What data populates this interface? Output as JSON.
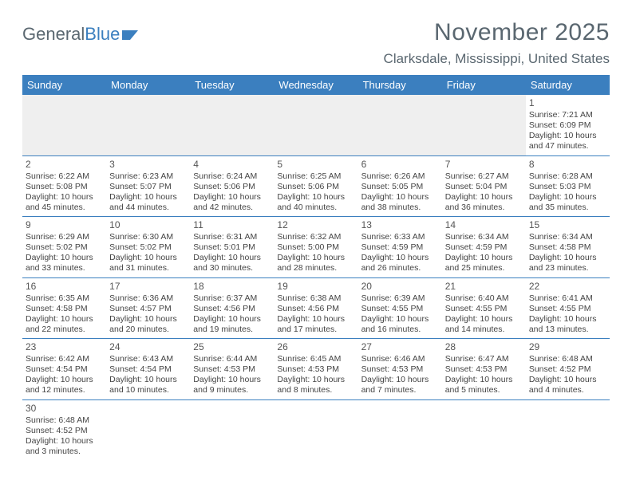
{
  "logo": {
    "text1": "General",
    "text2": "Blue"
  },
  "title": "November 2025",
  "location": "Clarksdale, Mississippi, United States",
  "colors": {
    "header_bg": "#3b7fbf",
    "header_text": "#ffffff",
    "text": "#5a6770",
    "rule": "#3b7fbf",
    "empty_bg": "#efefef"
  },
  "weekdays": [
    "Sunday",
    "Monday",
    "Tuesday",
    "Wednesday",
    "Thursday",
    "Friday",
    "Saturday"
  ],
  "weeks": [
    [
      {
        "empty": true
      },
      {
        "empty": true
      },
      {
        "empty": true
      },
      {
        "empty": true
      },
      {
        "empty": true
      },
      {
        "empty": true
      },
      {
        "day": "1",
        "sunrise": "Sunrise: 7:21 AM",
        "sunset": "Sunset: 6:09 PM",
        "day1": "Daylight: 10 hours",
        "day2": "and 47 minutes."
      }
    ],
    [
      {
        "day": "2",
        "sunrise": "Sunrise: 6:22 AM",
        "sunset": "Sunset: 5:08 PM",
        "day1": "Daylight: 10 hours",
        "day2": "and 45 minutes."
      },
      {
        "day": "3",
        "sunrise": "Sunrise: 6:23 AM",
        "sunset": "Sunset: 5:07 PM",
        "day1": "Daylight: 10 hours",
        "day2": "and 44 minutes."
      },
      {
        "day": "4",
        "sunrise": "Sunrise: 6:24 AM",
        "sunset": "Sunset: 5:06 PM",
        "day1": "Daylight: 10 hours",
        "day2": "and 42 minutes."
      },
      {
        "day": "5",
        "sunrise": "Sunrise: 6:25 AM",
        "sunset": "Sunset: 5:06 PM",
        "day1": "Daylight: 10 hours",
        "day2": "and 40 minutes."
      },
      {
        "day": "6",
        "sunrise": "Sunrise: 6:26 AM",
        "sunset": "Sunset: 5:05 PM",
        "day1": "Daylight: 10 hours",
        "day2": "and 38 minutes."
      },
      {
        "day": "7",
        "sunrise": "Sunrise: 6:27 AM",
        "sunset": "Sunset: 5:04 PM",
        "day1": "Daylight: 10 hours",
        "day2": "and 36 minutes."
      },
      {
        "day": "8",
        "sunrise": "Sunrise: 6:28 AM",
        "sunset": "Sunset: 5:03 PM",
        "day1": "Daylight: 10 hours",
        "day2": "and 35 minutes."
      }
    ],
    [
      {
        "day": "9",
        "sunrise": "Sunrise: 6:29 AM",
        "sunset": "Sunset: 5:02 PM",
        "day1": "Daylight: 10 hours",
        "day2": "and 33 minutes."
      },
      {
        "day": "10",
        "sunrise": "Sunrise: 6:30 AM",
        "sunset": "Sunset: 5:02 PM",
        "day1": "Daylight: 10 hours",
        "day2": "and 31 minutes."
      },
      {
        "day": "11",
        "sunrise": "Sunrise: 6:31 AM",
        "sunset": "Sunset: 5:01 PM",
        "day1": "Daylight: 10 hours",
        "day2": "and 30 minutes."
      },
      {
        "day": "12",
        "sunrise": "Sunrise: 6:32 AM",
        "sunset": "Sunset: 5:00 PM",
        "day1": "Daylight: 10 hours",
        "day2": "and 28 minutes."
      },
      {
        "day": "13",
        "sunrise": "Sunrise: 6:33 AM",
        "sunset": "Sunset: 4:59 PM",
        "day1": "Daylight: 10 hours",
        "day2": "and 26 minutes."
      },
      {
        "day": "14",
        "sunrise": "Sunrise: 6:34 AM",
        "sunset": "Sunset: 4:59 PM",
        "day1": "Daylight: 10 hours",
        "day2": "and 25 minutes."
      },
      {
        "day": "15",
        "sunrise": "Sunrise: 6:34 AM",
        "sunset": "Sunset: 4:58 PM",
        "day1": "Daylight: 10 hours",
        "day2": "and 23 minutes."
      }
    ],
    [
      {
        "day": "16",
        "sunrise": "Sunrise: 6:35 AM",
        "sunset": "Sunset: 4:58 PM",
        "day1": "Daylight: 10 hours",
        "day2": "and 22 minutes."
      },
      {
        "day": "17",
        "sunrise": "Sunrise: 6:36 AM",
        "sunset": "Sunset: 4:57 PM",
        "day1": "Daylight: 10 hours",
        "day2": "and 20 minutes."
      },
      {
        "day": "18",
        "sunrise": "Sunrise: 6:37 AM",
        "sunset": "Sunset: 4:56 PM",
        "day1": "Daylight: 10 hours",
        "day2": "and 19 minutes."
      },
      {
        "day": "19",
        "sunrise": "Sunrise: 6:38 AM",
        "sunset": "Sunset: 4:56 PM",
        "day1": "Daylight: 10 hours",
        "day2": "and 17 minutes."
      },
      {
        "day": "20",
        "sunrise": "Sunrise: 6:39 AM",
        "sunset": "Sunset: 4:55 PM",
        "day1": "Daylight: 10 hours",
        "day2": "and 16 minutes."
      },
      {
        "day": "21",
        "sunrise": "Sunrise: 6:40 AM",
        "sunset": "Sunset: 4:55 PM",
        "day1": "Daylight: 10 hours",
        "day2": "and 14 minutes."
      },
      {
        "day": "22",
        "sunrise": "Sunrise: 6:41 AM",
        "sunset": "Sunset: 4:55 PM",
        "day1": "Daylight: 10 hours",
        "day2": "and 13 minutes."
      }
    ],
    [
      {
        "day": "23",
        "sunrise": "Sunrise: 6:42 AM",
        "sunset": "Sunset: 4:54 PM",
        "day1": "Daylight: 10 hours",
        "day2": "and 12 minutes."
      },
      {
        "day": "24",
        "sunrise": "Sunrise: 6:43 AM",
        "sunset": "Sunset: 4:54 PM",
        "day1": "Daylight: 10 hours",
        "day2": "and 10 minutes."
      },
      {
        "day": "25",
        "sunrise": "Sunrise: 6:44 AM",
        "sunset": "Sunset: 4:53 PM",
        "day1": "Daylight: 10 hours",
        "day2": "and 9 minutes."
      },
      {
        "day": "26",
        "sunrise": "Sunrise: 6:45 AM",
        "sunset": "Sunset: 4:53 PM",
        "day1": "Daylight: 10 hours",
        "day2": "and 8 minutes."
      },
      {
        "day": "27",
        "sunrise": "Sunrise: 6:46 AM",
        "sunset": "Sunset: 4:53 PM",
        "day1": "Daylight: 10 hours",
        "day2": "and 7 minutes."
      },
      {
        "day": "28",
        "sunrise": "Sunrise: 6:47 AM",
        "sunset": "Sunset: 4:53 PM",
        "day1": "Daylight: 10 hours",
        "day2": "and 5 minutes."
      },
      {
        "day": "29",
        "sunrise": "Sunrise: 6:48 AM",
        "sunset": "Sunset: 4:52 PM",
        "day1": "Daylight: 10 hours",
        "day2": "and 4 minutes."
      }
    ],
    [
      {
        "day": "30",
        "sunrise": "Sunrise: 6:48 AM",
        "sunset": "Sunset: 4:52 PM",
        "day1": "Daylight: 10 hours",
        "day2": "and 3 minutes."
      },
      {
        "empty": true
      },
      {
        "empty": true
      },
      {
        "empty": true
      },
      {
        "empty": true
      },
      {
        "empty": true
      },
      {
        "empty": true
      }
    ]
  ]
}
